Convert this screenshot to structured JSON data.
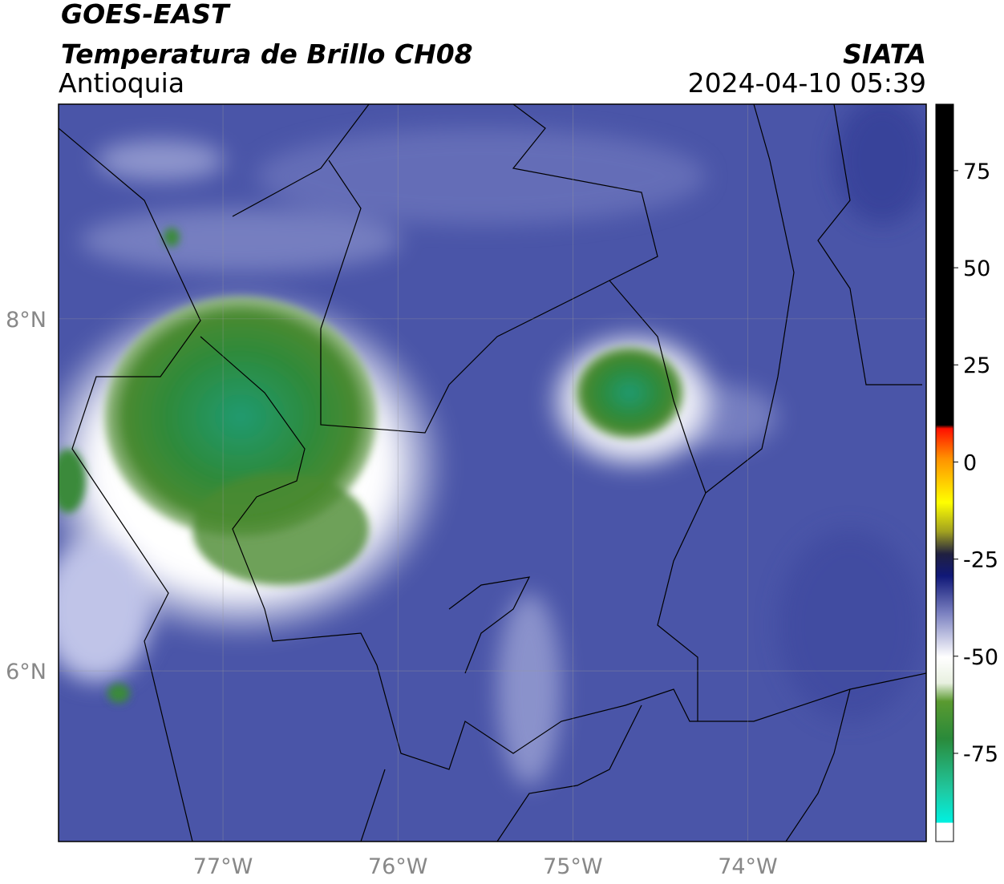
{
  "header": {
    "satellite": "GOES-EAST",
    "product": "Temperatura de Brillo CH08",
    "region": "Antioquia",
    "source": "SIATA",
    "datetime": "2024-04-10 05:39"
  },
  "map": {
    "lonlim": [
      -77.94,
      -72.98
    ],
    "latlim": [
      5.03,
      9.22
    ],
    "lonticks": [
      {
        "value": -77,
        "label": "77°W"
      },
      {
        "value": -76,
        "label": "76°W"
      },
      {
        "value": -75,
        "label": "75°W"
      },
      {
        "value": -74,
        "label": "74°W"
      }
    ],
    "latticks": [
      {
        "value": 8,
        "label": "8°N"
      },
      {
        "value": 6,
        "label": "6°N"
      }
    ]
  },
  "colorbar": {
    "lim": [
      -97.7,
      92.1
    ],
    "ticks": [
      75,
      50,
      25,
      0,
      -25,
      -50,
      -75
    ]
  }
}
